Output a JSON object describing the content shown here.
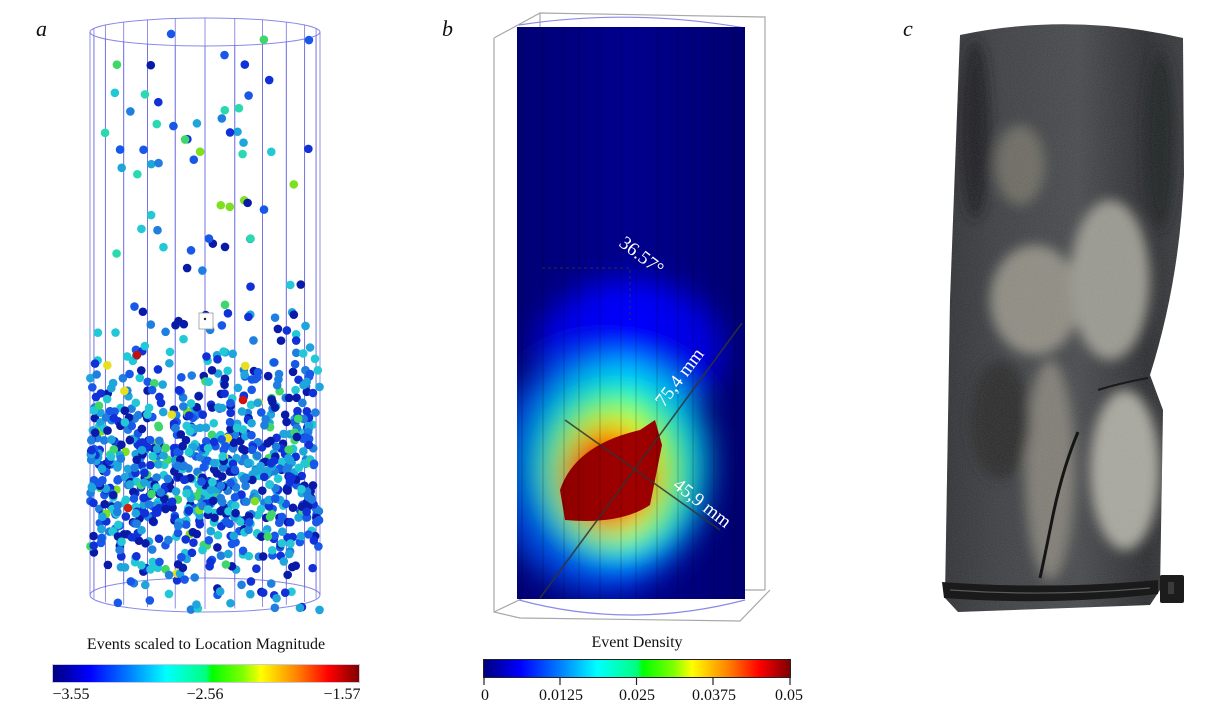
{
  "figure": {
    "panels": [
      {
        "id": "a",
        "label": "a",
        "description": "3D scatter of acoustic emission events within cylindrical specimen, colored by location magnitude",
        "colorbar": {
          "title": "Events scaled to Location Magnitude",
          "ticks": [
            "−3.55",
            "−2.56",
            "−1.57"
          ],
          "range": [
            -3.55,
            -1.57
          ],
          "colormap": "jet"
        }
      },
      {
        "id": "b",
        "label": "b",
        "description": "Event density map on vertical section of specimen with fracture plane measurement",
        "annotations": {
          "angle": "36.57°",
          "length_major": "75,4 mm",
          "length_minor": "45,9 mm"
        },
        "colorbar": {
          "title": "Event Density",
          "ticks": [
            "0",
            "0.0125",
            "0.025",
            "0.0375",
            "0.05"
          ],
          "range": [
            0,
            0.05
          ],
          "colormap": "jet"
        }
      },
      {
        "id": "c",
        "label": "c",
        "description": "Photograph of failed rock core specimen with shear fracture and cable tie near base"
      }
    ]
  },
  "chart_data": [
    {
      "type": "scatter",
      "title": "",
      "panel": "a",
      "colorbar_label": "Events scaled to Location Magnitude",
      "color_range": [
        -3.55,
        -1.57
      ],
      "color_ticks": [
        -3.55,
        -2.56,
        -1.57
      ],
      "distribution": "sparse events in upper half, dense cluster in lower half of cylinder; mostly blue/cyan magnitudes with few green, yellow and red outliers"
    },
    {
      "type": "heatmap",
      "title": "",
      "panel": "b",
      "colorbar_label": "Event Density",
      "color_range": [
        0,
        0.05
      ],
      "color_ticks": [
        0,
        0.0125,
        0.025,
        0.0375,
        0.05
      ],
      "annotations": [
        "36.57°",
        "75,4 mm",
        "45,9 mm"
      ],
      "distribution": "maximum density (red) concentrated lower-left of section, falling off to blue elsewhere"
    }
  ]
}
